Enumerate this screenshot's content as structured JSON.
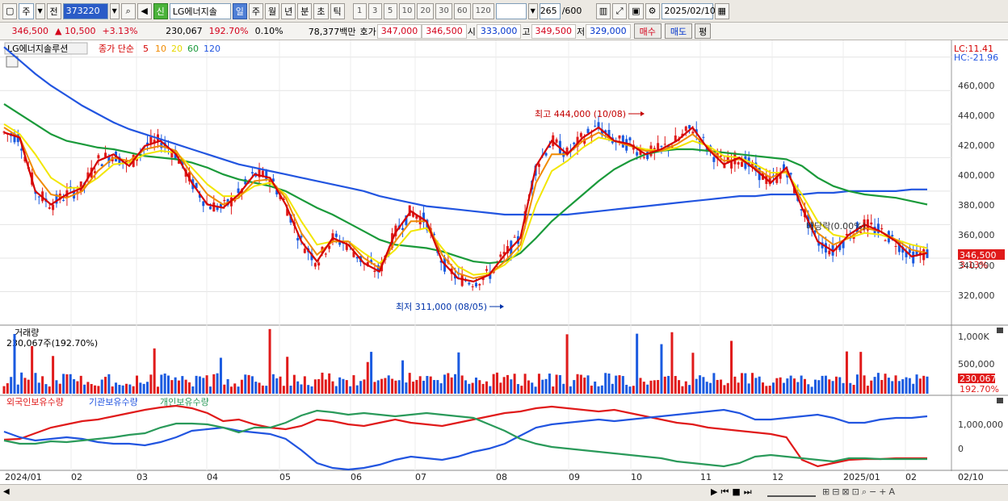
{
  "toolbar": {
    "market": "주",
    "mode": "전",
    "code": "373220",
    "new_badge": "신",
    "stock_name": "LG에너지솔",
    "periods": [
      "일",
      "주",
      "월",
      "년",
      "분",
      "초",
      "틱"
    ],
    "active_period": "일",
    "intervals": [
      "1",
      "3",
      "5",
      "10",
      "20",
      "30",
      "60",
      "120"
    ],
    "count": "265",
    "count_max": "/600",
    "date": "2025/02/10"
  },
  "quote": {
    "price": "346,500",
    "change": "▲ 10,500",
    "change_pct": "+3.13%",
    "volume": "230,067",
    "volume_ratio": "192.70%",
    "turnover": "0.10%",
    "amount": "78,377백만",
    "ask_label": "호가",
    "ask1": "347,000",
    "ask2": "346,500",
    "open_label": "시",
    "open": "333,000",
    "high_label": "고",
    "high": "349,500",
    "low_label": "저",
    "low": "329,000",
    "buy": "매수",
    "sell": "매도",
    "eval": "평"
  },
  "price_panel": {
    "title": "LG에너지솔루션",
    "ma_label": "종가 단순",
    "ma_periods": [
      "5",
      "10",
      "20",
      "60",
      "120"
    ],
    "lc": "LC:11.41",
    "hc": "HC:-21.96",
    "y_ticks": [
      "460,000",
      "440,000",
      "420,000",
      "400,000",
      "380,000",
      "360,000",
      "340,000",
      "320,000"
    ],
    "high_note": "최고 444,000 (10/08)",
    "low_note": "최저 311,000 (08/05)",
    "dividend_note": "배당락(0.00%)",
    "last_price_tag": "346,500",
    "last_pct_tag": "3.13%"
  },
  "volume_panel": {
    "title": "거래량",
    "value": "230,067주(192.70%)",
    "y_ticks": [
      "1,000K",
      "500,000"
    ],
    "last_tag": "230,067",
    "last_pct_tag": "192.70%"
  },
  "holding_panel": {
    "legend": [
      "외국인보유수량",
      "기관보유수량",
      "개인보유수량"
    ],
    "y_ticks": [
      "1,000,000",
      "0"
    ]
  },
  "x_axis": [
    "2024/01",
    "02",
    "03",
    "04",
    "05",
    "06",
    "07",
    "08",
    "09",
    "10",
    "11",
    "12",
    "2025/01",
    "02",
    "02/10"
  ],
  "colors": {
    "ma5": "#d40000",
    "ma10": "#f08a00",
    "ma20": "#f2e600",
    "ma60": "#1a9a3a",
    "ma120": "#2255e0",
    "up": "#e01a1a",
    "down": "#1a5ae0",
    "foreign": "#e01a1a",
    "institution": "#2255e0",
    "individual": "#2a9a5a"
  },
  "chart_data": {
    "type": "candlestick",
    "ylim": [
      300000,
      470000
    ],
    "ma5": [
      415000,
      412000,
      380000,
      372000,
      378000,
      382000,
      398000,
      402000,
      395000,
      407000,
      410000,
      402000,
      385000,
      372000,
      370000,
      378000,
      390000,
      388000,
      372000,
      350000,
      338000,
      352000,
      348000,
      337000,
      332000,
      355000,
      368000,
      362000,
      338000,
      328000,
      326000,
      330000,
      342000,
      352000,
      395000,
      410000,
      402000,
      412000,
      418000,
      410000,
      408000,
      402000,
      405000,
      410000,
      418000,
      405000,
      396000,
      400000,
      393000,
      385000,
      394000,
      370000,
      350000,
      344000,
      354000,
      360000,
      356000,
      350000,
      341000,
      343000
    ],
    "ma10": [
      418000,
      412000,
      390000,
      378000,
      376000,
      380000,
      392000,
      400000,
      398000,
      405000,
      407000,
      404000,
      390000,
      378000,
      372000,
      376000,
      386000,
      387000,
      376000,
      355000,
      342000,
      350000,
      350000,
      340000,
      334000,
      350000,
      362000,
      362000,
      342000,
      331000,
      328000,
      330000,
      338000,
      348000,
      385000,
      402000,
      402000,
      410000,
      415000,
      410000,
      407000,
      404000,
      404000,
      408000,
      414000,
      406000,
      398000,
      399000,
      394000,
      388000,
      392000,
      374000,
      355000,
      348000,
      352000,
      358000,
      356000,
      351000,
      345000,
      343000
    ],
    "ma20": [
      420000,
      414000,
      402000,
      388000,
      382000,
      382000,
      388000,
      396000,
      397000,
      402000,
      404000,
      403000,
      394000,
      384000,
      377000,
      377000,
      383000,
      385000,
      378000,
      362000,
      348000,
      350000,
      350000,
      343000,
      337000,
      345000,
      356000,
      358000,
      346000,
      335000,
      330000,
      331000,
      336000,
      345000,
      372000,
      392000,
      398000,
      406000,
      412000,
      410000,
      407000,
      405000,
      404000,
      406000,
      410000,
      407000,
      401000,
      400000,
      396000,
      391000,
      391000,
      378000,
      362000,
      354000,
      352000,
      355000,
      354000,
      351000,
      348000,
      346000
    ],
    "ma60": [
      432000,
      426000,
      420000,
      414000,
      410000,
      408000,
      406000,
      405000,
      403000,
      401000,
      400000,
      399000,
      397000,
      394000,
      390000,
      387000,
      385000,
      383000,
      380000,
      375000,
      370000,
      366000,
      361000,
      356000,
      351000,
      348000,
      347000,
      346000,
      344000,
      341000,
      338000,
      337000,
      338000,
      343000,
      352000,
      362000,
      370000,
      378000,
      386000,
      393000,
      398000,
      402000,
      404000,
      405000,
      405000,
      404000,
      403000,
      402000,
      401000,
      400000,
      399000,
      395000,
      388000,
      383000,
      380000,
      378000,
      377000,
      376000,
      374000,
      372000
    ],
    "ma120": [
      466000,
      458000,
      450000,
      443000,
      437000,
      431000,
      426000,
      421000,
      417000,
      414000,
      411000,
      408000,
      405000,
      402000,
      399000,
      396000,
      394000,
      392000,
      390000,
      388000,
      386000,
      384000,
      382000,
      380000,
      377000,
      375000,
      373000,
      371000,
      370000,
      369000,
      368000,
      367000,
      366000,
      366000,
      366000,
      366000,
      366000,
      367000,
      368000,
      369000,
      370000,
      371000,
      372000,
      373000,
      374000,
      375000,
      376000,
      377000,
      377000,
      378000,
      378000,
      378000,
      379000,
      379000,
      380000,
      380000,
      380000,
      380000,
      381000,
      381000
    ]
  }
}
